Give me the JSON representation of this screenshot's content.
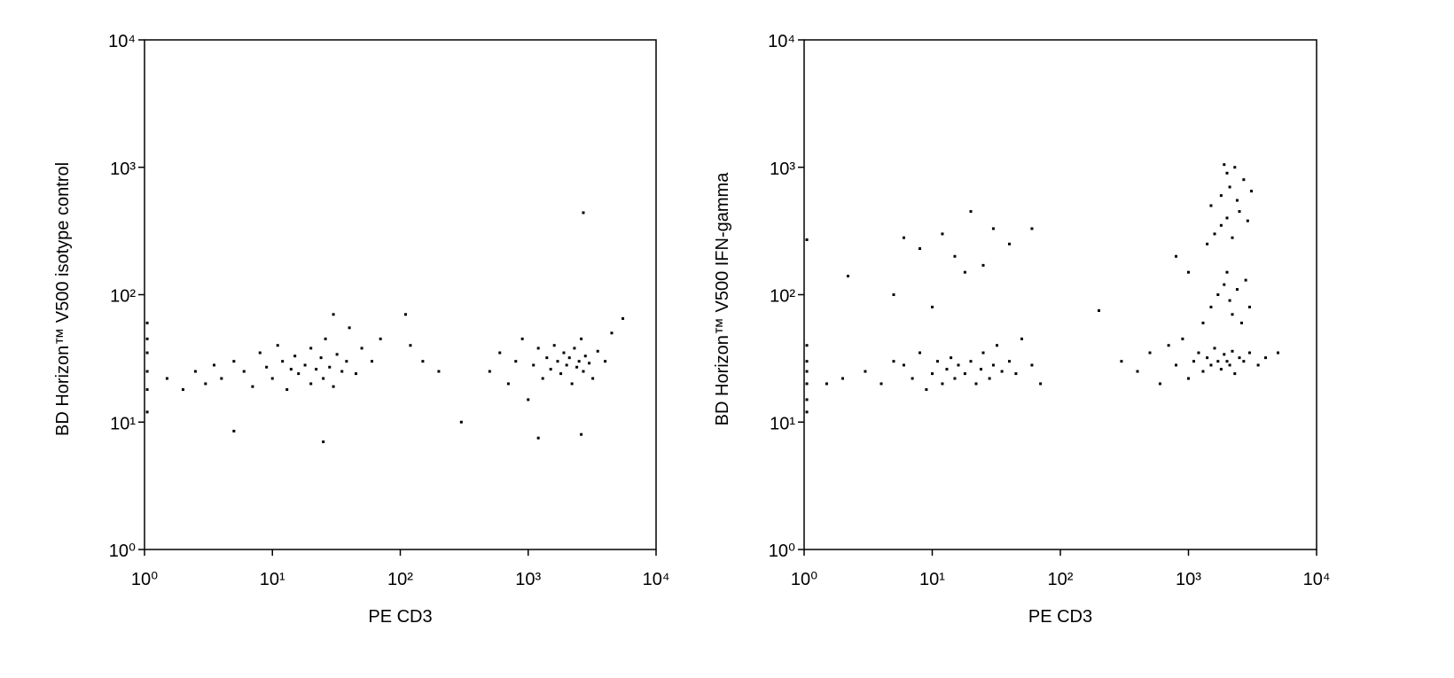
{
  "chart_data": [
    {
      "type": "scatter",
      "x_label": "PE CD3",
      "y_label": "BD Horizon™ V500 isotype control",
      "color": "#000000",
      "log_x": true,
      "log_y": true,
      "xlim": [
        1,
        10000
      ],
      "ylim": [
        1,
        10000
      ],
      "xticks": [
        {
          "value": 1,
          "label": "10⁰"
        },
        {
          "value": 10,
          "label": "10¹"
        },
        {
          "value": 100,
          "label": "10²"
        },
        {
          "value": 1000,
          "label": "10³"
        },
        {
          "value": 10000,
          "label": "10⁴"
        }
      ],
      "yticks": [
        {
          "value": 1,
          "label": "10⁰"
        },
        {
          "value": 10,
          "label": "10¹"
        },
        {
          "value": 100,
          "label": "10²"
        },
        {
          "value": 1000,
          "label": "10³"
        },
        {
          "value": 10000,
          "label": "10⁴"
        }
      ],
      "x": [
        1.05,
        1.05,
        1.05,
        1.05,
        1.05,
        1.05,
        1.5,
        2,
        2.5,
        3,
        3.5,
        4,
        5,
        5,
        6,
        7,
        8,
        9,
        10,
        11,
        12,
        13,
        14,
        15,
        16,
        18,
        20,
        20,
        22,
        24,
        25,
        26,
        28,
        30,
        32,
        35,
        38,
        40,
        45,
        50,
        60,
        70,
        25,
        30,
        110,
        120,
        150,
        300,
        200,
        500,
        600,
        700,
        800,
        900,
        1000,
        1100,
        1200,
        1300,
        1400,
        1500,
        1600,
        1700,
        1800,
        1900,
        2000,
        2100,
        2200,
        2300,
        2400,
        2500,
        2600,
        2700,
        2800,
        3000,
        3200,
        3500,
        4000,
        4500,
        5500,
        2700,
        2600,
        1200
      ],
      "y": [
        12,
        18,
        25,
        35,
        45,
        60,
        22,
        18,
        25,
        20,
        28,
        22,
        30,
        8.5,
        25,
        19,
        35,
        27,
        22,
        40,
        30,
        18,
        26,
        33,
        24,
        28,
        20,
        38,
        26,
        32,
        22,
        45,
        27,
        19,
        34,
        25,
        30,
        55,
        24,
        38,
        30,
        45,
        7,
        70,
        70,
        40,
        30,
        10,
        25,
        25,
        35,
        20,
        30,
        45,
        15,
        28,
        38,
        22,
        32,
        26,
        40,
        30,
        24,
        35,
        28,
        32,
        20,
        38,
        27,
        30,
        45,
        25,
        33,
        29,
        22,
        36,
        30,
        50,
        65,
        440,
        8,
        7.5
      ]
    },
    {
      "type": "scatter",
      "x_label": "PE CD3",
      "y_label": "BD Horizon™ V500 IFN-gamma",
      "color": "#000000",
      "log_x": true,
      "log_y": true,
      "xlim": [
        1,
        10000
      ],
      "ylim": [
        1,
        10000
      ],
      "xticks": [
        {
          "value": 1,
          "label": "10⁰"
        },
        {
          "value": 10,
          "label": "10¹"
        },
        {
          "value": 100,
          "label": "10²"
        },
        {
          "value": 1000,
          "label": "10³"
        },
        {
          "value": 10000,
          "label": "10⁴"
        }
      ],
      "yticks": [
        {
          "value": 1,
          "label": "10⁰"
        },
        {
          "value": 10,
          "label": "10¹"
        },
        {
          "value": 100,
          "label": "10²"
        },
        {
          "value": 1000,
          "label": "10³"
        },
        {
          "value": 10000,
          "label": "10⁴"
        }
      ],
      "x": [
        1.05,
        1.05,
        1.05,
        1.05,
        1.05,
        1.05,
        1.05,
        1.5,
        2,
        2.2,
        3,
        4,
        5,
        6,
        7,
        8,
        9,
        10,
        11,
        12,
        13,
        14,
        15,
        16,
        18,
        20,
        22,
        24,
        25,
        28,
        30,
        32,
        35,
        40,
        45,
        50,
        60,
        70,
        6,
        8,
        12,
        15,
        18,
        20,
        25,
        30,
        40,
        60,
        5,
        10,
        200,
        300,
        400,
        500,
        600,
        700,
        800,
        900,
        1000,
        1100,
        1200,
        1300,
        1400,
        1500,
        1600,
        1700,
        1800,
        1900,
        2000,
        2100,
        2200,
        2300,
        2500,
        2700,
        3000,
        3500,
        4000,
        5000,
        1300,
        1500,
        1700,
        1900,
        2000,
        2100,
        2200,
        2400,
        2600,
        2800,
        3000,
        1400,
        1600,
        1800,
        2000,
        2200,
        2500,
        2900,
        1500,
        1800,
        2100,
        2400,
        2700,
        3100,
        2000,
        2300,
        1900,
        800,
        1000
      ],
      "y": [
        12,
        15,
        20,
        25,
        30,
        40,
        270,
        20,
        22,
        140,
        25,
        20,
        30,
        28,
        22,
        35,
        18,
        24,
        30,
        20,
        26,
        32,
        22,
        28,
        24,
        30,
        20,
        26,
        35,
        22,
        28,
        40,
        25,
        30,
        24,
        45,
        28,
        20,
        280,
        230,
        300,
        200,
        150,
        450,
        170,
        330,
        250,
        330,
        100,
        80,
        75,
        30,
        25,
        35,
        20,
        40,
        28,
        45,
        22,
        30,
        35,
        25,
        32,
        28,
        38,
        30,
        26,
        34,
        30,
        28,
        36,
        24,
        32,
        30,
        35,
        28,
        32,
        35,
        60,
        80,
        100,
        120,
        150,
        90,
        70,
        110,
        60,
        130,
        80,
        250,
        300,
        350,
        400,
        280,
        450,
        380,
        500,
        600,
        700,
        550,
        800,
        650,
        900,
        1000,
        1050,
        200,
        150
      ]
    }
  ]
}
